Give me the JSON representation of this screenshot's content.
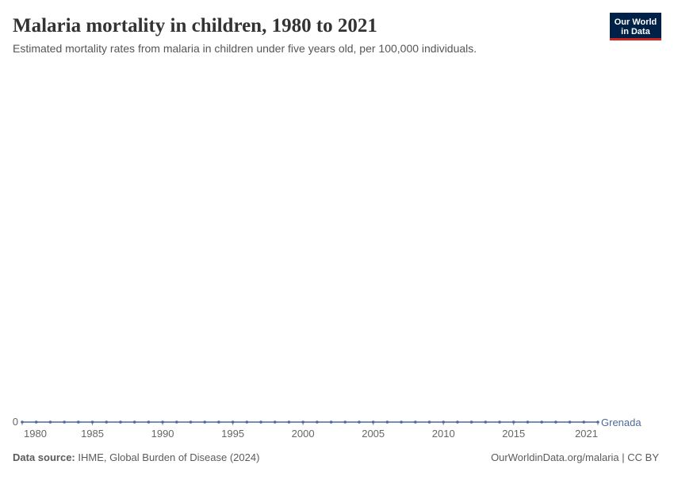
{
  "header": {
    "title": "Malaria mortality in children, 1980 to 2021",
    "subtitle": "Estimated mortality rates from malaria in children under five years old, per 100,000 individuals."
  },
  "logo": [
    "Our World",
    "in Data"
  ],
  "chart_data": {
    "type": "line",
    "x": [
      1980,
      1981,
      1982,
      1983,
      1984,
      1985,
      1986,
      1987,
      1988,
      1989,
      1990,
      1991,
      1992,
      1993,
      1994,
      1995,
      1996,
      1997,
      1998,
      1999,
      2000,
      2001,
      2002,
      2003,
      2004,
      2005,
      2006,
      2007,
      2008,
      2009,
      2010,
      2011,
      2012,
      2013,
      2014,
      2015,
      2016,
      2017,
      2018,
      2019,
      2020,
      2021
    ],
    "series": [
      {
        "name": "Grenada",
        "color": "#4c6a9c",
        "values": [
          0,
          0,
          0,
          0,
          0,
          0,
          0,
          0,
          0,
          0,
          0,
          0,
          0,
          0,
          0,
          0,
          0,
          0,
          0,
          0,
          0,
          0,
          0,
          0,
          0,
          0,
          0,
          0,
          0,
          0,
          0,
          0,
          0,
          0,
          0,
          0,
          0,
          0,
          0,
          0,
          0,
          0
        ]
      }
    ],
    "xlim": [
      1980,
      2021
    ],
    "xticks": [
      1980,
      1985,
      1990,
      1995,
      2000,
      2005,
      2010,
      2015,
      2021
    ],
    "ylim": [
      0,
      1
    ],
    "yticks": [
      0
    ],
    "grid": true
  },
  "footer": {
    "source_label": "Data source:",
    "source": "IHME, Global Burden of Disease (2024)",
    "url": "OurWorldinData.org/malaria | CC BY"
  }
}
